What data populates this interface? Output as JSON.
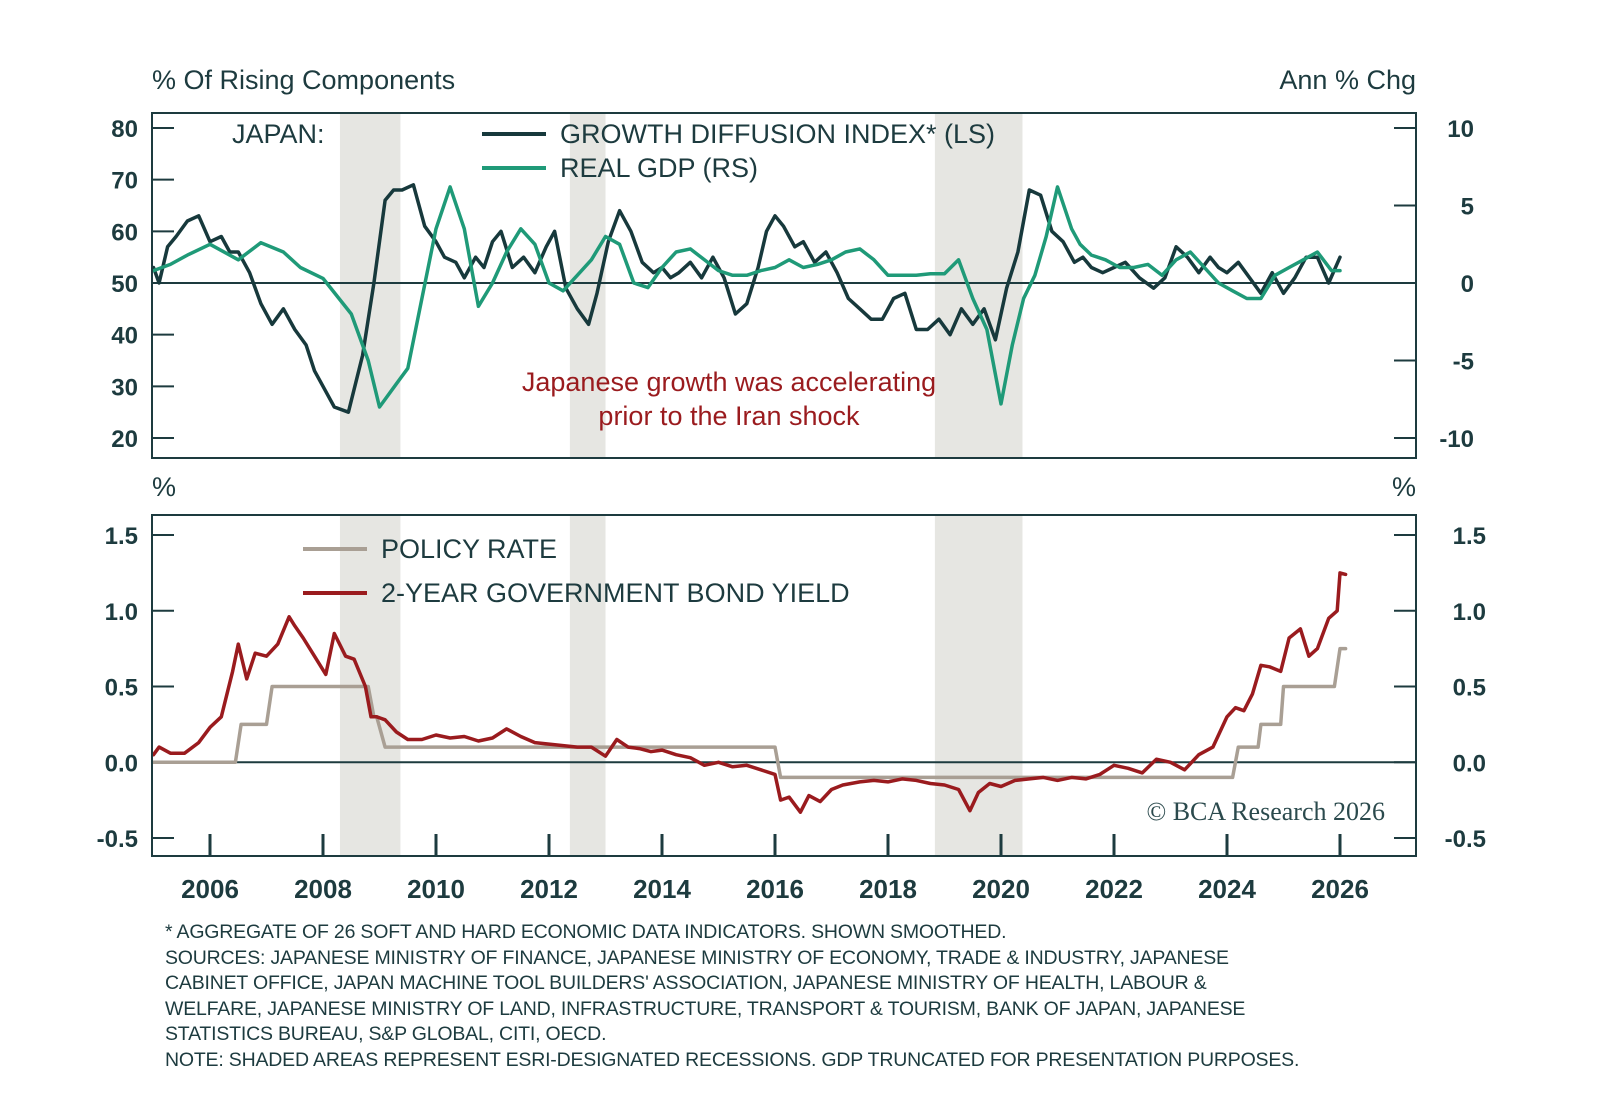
{
  "chart_data": [
    {
      "type": "line",
      "panel": "top",
      "left_axis_title": "% Of Rising Components",
      "right_axis_title": "Ann % Chg",
      "panel_label": "JAPAN:",
      "left_ylim": [
        20,
        80
      ],
      "left_ticks": [
        "80",
        "70",
        "60",
        "50",
        "40",
        "30",
        "20"
      ],
      "left_tick_values": [
        80,
        70,
        60,
        50,
        40,
        30,
        20
      ],
      "right_ylim": [
        -10,
        10
      ],
      "right_ticks": [
        "10",
        "5",
        "0",
        "-5",
        "-10"
      ],
      "right_tick_values": [
        10,
        5,
        0,
        -5,
        -10
      ],
      "reference_line": {
        "left_value": 50,
        "right_value": 0
      },
      "annotation": [
        "Japanese growth was accelerating",
        "prior to the Iran shock"
      ],
      "annotation_color": "#9a1b1e",
      "series": [
        {
          "name": "GROWTH DIFFUSION INDEX* (LS)",
          "axis": "left",
          "color": "#17393c",
          "x": [
            2005.0,
            2005.1,
            2005.25,
            2005.4,
            2005.6,
            2005.8,
            2006.0,
            2006.2,
            2006.35,
            2006.5,
            2006.7,
            2006.9,
            2007.1,
            2007.3,
            2007.5,
            2007.7,
            2007.85,
            2008.0,
            2008.2,
            2008.45,
            2008.7,
            2008.9,
            2009.1,
            2009.25,
            2009.4,
            2009.6,
            2009.8,
            2010.0,
            2010.15,
            2010.35,
            2010.5,
            2010.7,
            2010.85,
            2011.0,
            2011.15,
            2011.35,
            2011.55,
            2011.75,
            2011.95,
            2012.1,
            2012.3,
            2012.5,
            2012.7,
            2012.85,
            2013.05,
            2013.25,
            2013.45,
            2013.65,
            2013.85,
            2014.0,
            2014.15,
            2014.3,
            2014.5,
            2014.7,
            2014.9,
            2015.1,
            2015.3,
            2015.5,
            2015.7,
            2015.85,
            2016.0,
            2016.15,
            2016.35,
            2016.5,
            2016.7,
            2016.9,
            2017.1,
            2017.3,
            2017.5,
            2017.7,
            2017.9,
            2018.1,
            2018.3,
            2018.5,
            2018.7,
            2018.9,
            2019.1,
            2019.3,
            2019.5,
            2019.7,
            2019.9,
            2020.1,
            2020.3,
            2020.5,
            2020.7,
            2020.9,
            2021.1,
            2021.3,
            2021.45,
            2021.6,
            2021.8,
            2022.0,
            2022.2,
            2022.45,
            2022.7,
            2022.9,
            2023.1,
            2023.3,
            2023.5,
            2023.7,
            2023.85,
            2024.0,
            2024.2,
            2024.4,
            2024.6,
            2024.8,
            2025.0,
            2025.2,
            2025.4,
            2025.6,
            2025.8,
            2026.0
          ],
          "values": [
            53,
            50,
            57,
            59,
            62,
            63,
            58,
            59,
            56,
            56,
            52,
            46,
            42,
            45,
            41,
            38,
            33,
            30,
            26,
            25,
            36,
            50,
            66,
            68,
            68,
            69,
            61,
            58,
            55,
            54,
            51,
            55,
            53,
            58,
            60,
            53,
            55,
            52,
            57,
            60,
            49,
            45,
            42,
            48,
            58,
            64,
            60,
            54,
            52,
            53,
            51,
            52,
            54,
            51,
            55,
            51,
            44,
            46,
            53,
            60,
            63,
            61,
            57,
            58,
            54,
            56,
            52,
            47,
            45,
            43,
            43,
            47,
            48,
            41,
            41,
            43,
            40,
            45,
            42,
            45,
            39,
            49,
            56,
            68,
            67,
            60,
            58,
            54,
            55,
            53,
            52,
            53,
            54,
            51,
            49,
            51,
            57,
            55,
            52,
            55,
            53,
            52,
            54,
            51,
            48,
            52,
            48,
            51,
            55,
            55,
            50,
            55
          ],
          "note": "values approximate, read from gridlines"
        },
        {
          "name": "REAL GDP (RS)",
          "axis": "right",
          "color": "#1f9a78",
          "x": [
            2005.0,
            2005.3,
            2005.6,
            2006.0,
            2006.5,
            2006.9,
            2007.3,
            2007.6,
            2008.0,
            2008.5,
            2008.8,
            2009.0,
            2009.3,
            2009.5,
            2009.75,
            2010.0,
            2010.25,
            2010.5,
            2010.75,
            2011.0,
            2011.25,
            2011.5,
            2011.75,
            2012.0,
            2012.25,
            2012.5,
            2012.75,
            2013.0,
            2013.25,
            2013.5,
            2013.75,
            2014.0,
            2014.25,
            2014.5,
            2014.75,
            2015.0,
            2015.25,
            2015.5,
            2015.75,
            2016.0,
            2016.25,
            2016.5,
            2016.75,
            2017.0,
            2017.25,
            2017.5,
            2017.75,
            2018.0,
            2018.25,
            2018.5,
            2018.75,
            2019.0,
            2019.25,
            2019.5,
            2019.75,
            2020.0,
            2020.2,
            2020.4,
            2020.6,
            2020.8,
            2021.0,
            2021.25,
            2021.4,
            2021.6,
            2021.85,
            2022.1,
            2022.35,
            2022.6,
            2022.85,
            2023.1,
            2023.35,
            2023.6,
            2023.85,
            2024.1,
            2024.35,
            2024.6,
            2024.85,
            2025.1,
            2025.35,
            2025.6,
            2025.85,
            2026.0
          ],
          "values": [
            0.8,
            1.2,
            1.8,
            2.5,
            1.5,
            2.6,
            2.0,
            1.0,
            0.3,
            -2.0,
            -5.0,
            -8.0,
            -6.5,
            -5.5,
            -1.0,
            3.5,
            6.2,
            3.5,
            -1.5,
            0,
            2.0,
            3.5,
            2.5,
            0.0,
            -0.5,
            0.5,
            1.5,
            3.0,
            2.5,
            0.0,
            -0.3,
            1.0,
            2.0,
            2.2,
            1.5,
            0.8,
            0.5,
            0.5,
            0.8,
            1.0,
            1.5,
            1.0,
            1.2,
            1.5,
            2.0,
            2.2,
            1.5,
            0.5,
            0.5,
            0.5,
            0.6,
            0.6,
            1.5,
            -1.0,
            -3.0,
            -7.8,
            -4.0,
            -1.0,
            0.5,
            3.0,
            6.2,
            3.5,
            2.5,
            1.8,
            1.5,
            1.0,
            1.0,
            1.2,
            0.5,
            1.5,
            2.0,
            1.0,
            0.0,
            -0.5,
            -1.0,
            -1.0,
            0.5,
            1.0,
            1.5,
            2.0,
            0.8,
            0.8
          ],
          "note": "values approximate, read from gridlines"
        }
      ]
    },
    {
      "type": "line",
      "panel": "bottom",
      "left_axis_title": "%",
      "right_axis_title": "%",
      "ylim": [
        -0.5,
        1.5
      ],
      "left_ticks": [
        "1.5",
        "1.0",
        "0.5",
        "0.0",
        "-0.5"
      ],
      "right_ticks": [
        "1.5",
        "1.0",
        "0.5",
        "0.0",
        "-0.5"
      ],
      "tick_values": [
        1.5,
        1.0,
        0.5,
        0.0,
        -0.5
      ],
      "reference_line": 0,
      "series": [
        {
          "name": "POLICY RATE",
          "color": "#a99f94",
          "x": [
            2005.0,
            2006.45,
            2006.55,
            2007.0,
            2007.1,
            2008.8,
            2008.9,
            2008.95,
            2009.1,
            2016.0,
            2016.1,
            2024.1,
            2024.2,
            2024.55,
            2024.6,
            2024.95,
            2025.0,
            2025.9,
            2026.0,
            2026.1
          ],
          "values": [
            0.0,
            0.0,
            0.25,
            0.25,
            0.5,
            0.5,
            0.3,
            0.3,
            0.1,
            0.1,
            -0.1,
            -0.1,
            0.1,
            0.1,
            0.25,
            0.25,
            0.5,
            0.5,
            0.75,
            0.75
          ]
        },
        {
          "name": "2-YEAR GOVERNMENT BOND YIELD",
          "color": "#9a1b1e",
          "x": [
            2005.0,
            2005.1,
            2005.3,
            2005.55,
            2005.8,
            2006.0,
            2006.2,
            2006.4,
            2006.5,
            2006.65,
            2006.8,
            2007.0,
            2007.2,
            2007.4,
            2007.5,
            2007.65,
            2007.85,
            2008.05,
            2008.2,
            2008.4,
            2008.55,
            2008.75,
            2008.85,
            2008.95,
            2009.1,
            2009.3,
            2009.5,
            2009.75,
            2010.0,
            2010.25,
            2010.5,
            2010.75,
            2011.0,
            2011.25,
            2011.5,
            2011.75,
            2012.0,
            2012.25,
            2012.5,
            2012.75,
            2013.0,
            2013.2,
            2013.4,
            2013.6,
            2013.8,
            2014.0,
            2014.25,
            2014.5,
            2014.75,
            2015.0,
            2015.25,
            2015.5,
            2015.75,
            2016.0,
            2016.1,
            2016.25,
            2016.45,
            2016.6,
            2016.8,
            2017.0,
            2017.2,
            2017.5,
            2017.75,
            2018.0,
            2018.25,
            2018.5,
            2018.75,
            2019.0,
            2019.25,
            2019.45,
            2019.6,
            2019.8,
            2020.0,
            2020.25,
            2020.5,
            2020.75,
            2021.0,
            2021.25,
            2021.5,
            2021.75,
            2022.0,
            2022.25,
            2022.5,
            2022.75,
            2023.0,
            2023.25,
            2023.5,
            2023.75,
            2024.0,
            2024.15,
            2024.3,
            2024.45,
            2024.6,
            2024.75,
            2024.95,
            2025.1,
            2025.3,
            2025.45,
            2025.6,
            2025.8,
            2025.95,
            2026.0,
            2026.1
          ],
          "values": [
            0.05,
            0.1,
            0.06,
            0.06,
            0.13,
            0.23,
            0.3,
            0.6,
            0.78,
            0.55,
            0.72,
            0.7,
            0.78,
            0.96,
            0.9,
            0.82,
            0.7,
            0.58,
            0.85,
            0.7,
            0.68,
            0.5,
            0.3,
            0.3,
            0.28,
            0.2,
            0.15,
            0.15,
            0.18,
            0.16,
            0.17,
            0.14,
            0.16,
            0.22,
            0.17,
            0.13,
            0.12,
            0.11,
            0.1,
            0.1,
            0.04,
            0.15,
            0.1,
            0.09,
            0.07,
            0.08,
            0.05,
            0.03,
            -0.02,
            0.0,
            -0.03,
            -0.02,
            -0.05,
            -0.08,
            -0.25,
            -0.23,
            -0.33,
            -0.22,
            -0.26,
            -0.18,
            -0.15,
            -0.13,
            -0.12,
            -0.13,
            -0.11,
            -0.12,
            -0.14,
            -0.15,
            -0.18,
            -0.32,
            -0.2,
            -0.14,
            -0.16,
            -0.12,
            -0.11,
            -0.1,
            -0.12,
            -0.1,
            -0.11,
            -0.08,
            -0.02,
            -0.04,
            -0.07,
            0.02,
            0.0,
            -0.05,
            0.05,
            0.1,
            0.3,
            0.36,
            0.34,
            0.45,
            0.64,
            0.63,
            0.6,
            0.82,
            0.88,
            0.7,
            0.75,
            0.95,
            1.0,
            1.25,
            1.24
          ],
          "note": "values approximate, read from gridlines"
        }
      ],
      "copyright": "© BCA Research 2026"
    }
  ],
  "shared_x": {
    "xlim": [
      2005.0,
      2027.3
    ],
    "tick_labels": [
      "2006",
      "2008",
      "2010",
      "2012",
      "2014",
      "2016",
      "2018",
      "2020",
      "2022",
      "2024",
      "2026"
    ],
    "tick_values": [
      2006,
      2008,
      2010,
      2012,
      2014,
      2016,
      2018,
      2020,
      2022,
      2024,
      2026
    ],
    "recession_shading": [
      [
        2008.3,
        2009.37
      ],
      [
        2012.37,
        2013.0
      ],
      [
        2018.83,
        2020.38
      ]
    ],
    "recession_color": "#e6e6e2"
  },
  "legend_top": [
    {
      "label": "GROWTH DIFFUSION INDEX* (LS)",
      "color": "#17393c"
    },
    {
      "label": "REAL GDP (RS)",
      "color": "#1f9a78"
    }
  ],
  "legend_bottom": [
    {
      "label": "POLICY RATE",
      "color": "#a99f94"
    },
    {
      "label": "2-YEAR GOVERNMENT BOND YIELD",
      "color": "#9a1b1e"
    }
  ],
  "footnotes": {
    "line1": "* AGGREGATE OF 26 SOFT AND HARD ECONOMIC DATA INDICATORS. SHOWN SMOOTHED.",
    "line2": "SOURCES: JAPANESE MINISTRY OF FINANCE, JAPANESE MINISTRY OF ECONOMY, TRADE & INDUSTRY, JAPANESE",
    "line3": "CABINET OFFICE, JAPAN MACHINE TOOL BUILDERS' ASSOCIATION, JAPANESE MINISTRY OF HEALTH, LABOUR &",
    "line4": "WELFARE, JAPANESE MINISTRY OF LAND, INFRASTRUCTURE, TRANSPORT & TOURISM, BANK OF JAPAN, JAPANESE",
    "line5": "STATISTICS BUREAU, S&P GLOBAL, CITI, OECD.",
    "line6": "NOTE: SHADED AREAS REPRESENT ESRI-DESIGNATED RECESSIONS. GDP TRUNCATED FOR PRESENTATION PURPOSES."
  }
}
